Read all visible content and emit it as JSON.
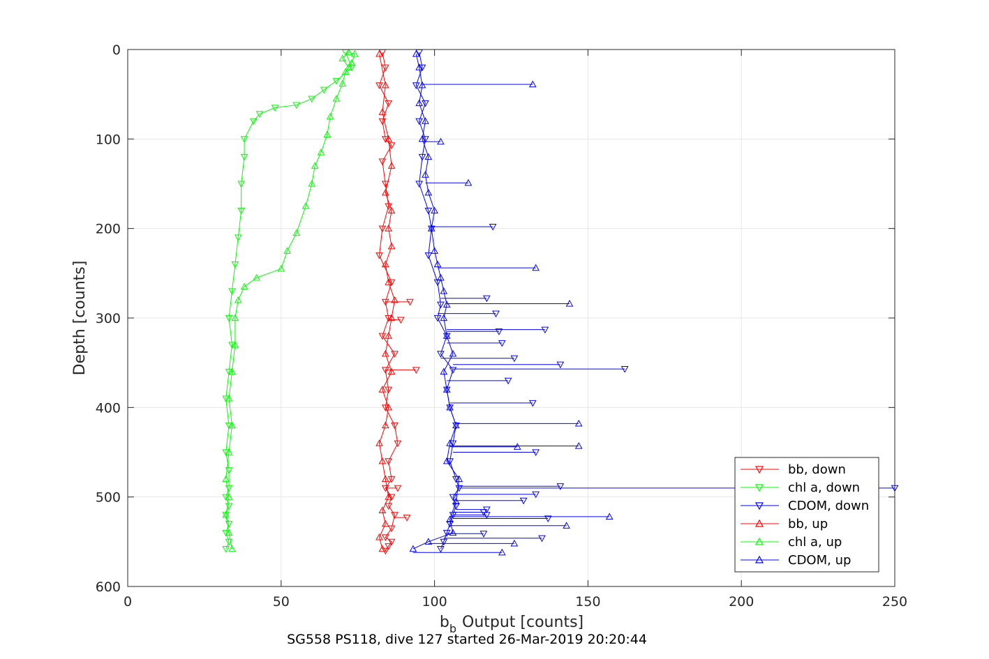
{
  "chart_data": {
    "type": "line",
    "subtitle": "SG558 PS118, dive 127 started 26-Mar-2019 20:20:44",
    "xlabel_main": "b",
    "xlabel_sub": "b",
    "xlabel_rest": "Output [counts]",
    "ylabel": "Depth [counts]",
    "xlim": [
      0,
      250
    ],
    "ylim": [
      600,
      0
    ],
    "y_reversed": true,
    "grid": true,
    "xticks": [
      "0",
      "50",
      "100",
      "150",
      "200",
      "250"
    ],
    "yticks": [
      "0",
      "100",
      "200",
      "300",
      "400",
      "500",
      "600"
    ],
    "legend_position": "bottom-right",
    "series": [
      {
        "name": "bb, down",
        "color": "#ff0000",
        "marker": "triangle-down",
        "x": [
          83,
          84,
          82,
          85,
          83,
          84,
          86,
          83,
          84,
          85,
          83,
          82,
          86,
          84,
          85,
          83,
          87,
          84,
          85,
          84,
          87,
          88,
          85,
          86,
          84,
          86,
          85,
          87,
          86,
          84,
          86,
          85,
          84
        ],
        "y": [
          3,
          20,
          40,
          60,
          80,
          100,
          107,
          125,
          150,
          175,
          200,
          230,
          260,
          282,
          300,
          320,
          340,
          358,
          380,
          400,
          420,
          440,
          460,
          480,
          490,
          500,
          510,
          520,
          535,
          545,
          550,
          555,
          560
        ]
      },
      {
        "name": "chl a, down",
        "color": "#00ff00",
        "marker": "triangle-down",
        "x": [
          71,
          73,
          68,
          64,
          60,
          55,
          48,
          43,
          41,
          38,
          38,
          37,
          37,
          36,
          35,
          34,
          33,
          34,
          33,
          32,
          33,
          32,
          33,
          33,
          32,
          33,
          32,
          33,
          32,
          33,
          32
        ],
        "y": [
          3,
          20,
          35,
          45,
          55,
          62,
          65,
          72,
          80,
          100,
          120,
          150,
          180,
          210,
          240,
          270,
          300,
          330,
          360,
          390,
          420,
          450,
          470,
          490,
          500,
          510,
          520,
          530,
          540,
          550,
          558
        ]
      },
      {
        "name": "CDOM, down",
        "color": "#0000ff",
        "marker": "triangle-down",
        "x": [
          95,
          96,
          94,
          97,
          95,
          97,
          96,
          95,
          98,
          99,
          98,
          101,
          102,
          101,
          104,
          102,
          106,
          104,
          105,
          107,
          106,
          105,
          107,
          108,
          106,
          107,
          106,
          105,
          104,
          103,
          102
        ],
        "y": [
          3,
          20,
          40,
          60,
          80,
          100,
          120,
          150,
          180,
          200,
          230,
          260,
          285,
          300,
          320,
          340,
          358,
          380,
          400,
          420,
          440,
          460,
          480,
          490,
          500,
          510,
          520,
          530,
          540,
          550,
          558
        ]
      },
      {
        "name": "bb, up",
        "color": "#ff0000",
        "marker": "triangle-up",
        "x": [
          83,
          82,
          84,
          83,
          85,
          84,
          83,
          82,
          84,
          85,
          83,
          86,
          84,
          85,
          86,
          87,
          85,
          84,
          86,
          85,
          86,
          84,
          86,
          85,
          83,
          84,
          82
        ],
        "y": [
          558,
          545,
          530,
          515,
          500,
          480,
          460,
          440,
          420,
          400,
          380,
          360,
          340,
          320,
          300,
          280,
          260,
          240,
          220,
          200,
          180,
          160,
          130,
          100,
          70,
          40,
          5
        ]
      },
      {
        "name": "chl a, up",
        "color": "#00ff00",
        "marker": "triangle-up",
        "x": [
          34,
          33,
          32,
          33,
          32,
          33,
          34,
          33,
          34,
          35,
          35,
          36,
          38,
          42,
          50,
          52,
          55,
          58,
          60,
          61,
          63,
          65,
          66,
          68,
          70,
          71,
          73,
          74,
          72,
          70,
          72
        ],
        "y": [
          558,
          540,
          520,
          500,
          480,
          450,
          420,
          390,
          360,
          330,
          300,
          280,
          265,
          255,
          245,
          225,
          205,
          175,
          150,
          130,
          115,
          95,
          75,
          55,
          38,
          25,
          15,
          5,
          3,
          10,
          20
        ]
      },
      {
        "name": "CDOM, up",
        "color": "#0000ff",
        "marker": "triangle-up",
        "x": [
          93,
          98,
          106,
          105,
          107,
          108,
          104,
          105,
          107,
          105,
          104,
          103,
          106,
          104,
          103,
          104,
          103,
          102,
          101,
          100,
          99,
          100,
          98,
          97,
          98,
          96,
          97,
          95,
          96,
          95,
          94
        ],
        "y": [
          558,
          550,
          540,
          525,
          505,
          480,
          460,
          440,
          420,
          400,
          380,
          360,
          340,
          320,
          300,
          285,
          270,
          255,
          240,
          225,
          200,
          180,
          160,
          140,
          120,
          100,
          80,
          60,
          40,
          20,
          5
        ]
      }
    ],
    "outliers": {
      "bb, down": {
        "x": [
          94,
          92,
          89,
          88,
          91
        ],
        "y": [
          358,
          282,
          302,
          490,
          523
        ]
      },
      "CDOM, down": {
        "x": [
          119,
          117,
          120,
          121,
          122,
          136,
          141,
          162,
          124,
          126,
          132,
          133,
          141,
          250,
          133,
          129,
          137,
          135,
          116,
          116,
          117,
          117
        ],
        "y": [
          198,
          278,
          295,
          315,
          328,
          313,
          352,
          357,
          370,
          345,
          395,
          450,
          488,
          490,
          497,
          504,
          524,
          546,
          541,
          517,
          520,
          514
        ]
      },
      "CDOM, up": {
        "x": [
          132,
          111,
          102,
          133,
          144,
          147,
          147,
          157,
          143,
          127,
          126,
          122
        ],
        "y": [
          39,
          149,
          103,
          244,
          284,
          418,
          443,
          522,
          532,
          444,
          552,
          562
        ]
      }
    }
  }
}
